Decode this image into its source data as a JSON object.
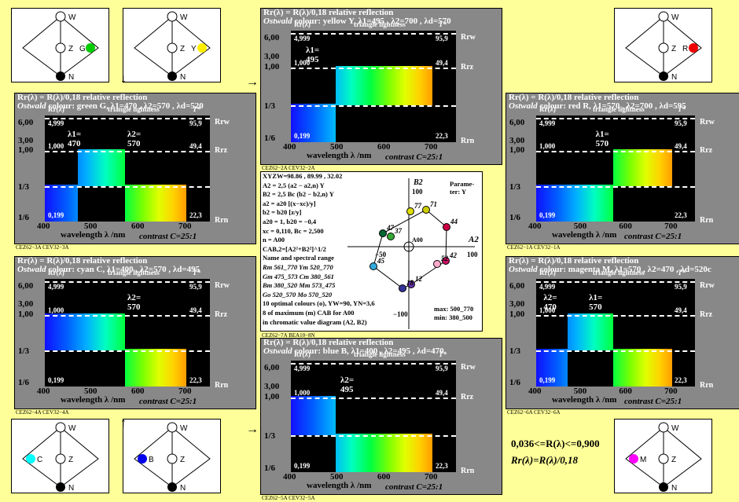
{
  "page": {
    "note_line1": "0,036<=R(λ)<=0,900",
    "note_line2": "Rr(λ)=R(λ)/0,18"
  },
  "triangles": [
    {
      "id": "tri-green",
      "labels": {
        "top": "W",
        "mid": "Z",
        "right": "G",
        "bottom": "N"
      },
      "color": "#00cc00"
    },
    {
      "id": "tri-yellow",
      "labels": {
        "top": "W",
        "mid": "Z",
        "right": "Y",
        "bottom": "N"
      },
      "color": "#ffee00"
    },
    {
      "id": "tri-red",
      "labels": {
        "top": "W",
        "mid": "Z",
        "right": "R",
        "bottom": "N"
      },
      "color": "#ee0000"
    },
    {
      "id": "tri-cyan",
      "labels": {
        "top": "W",
        "mid": "Z",
        "left": "C",
        "bottom": "N"
      },
      "color": "#00ffff"
    },
    {
      "id": "tri-blue",
      "labels": {
        "top": "W",
        "mid": "Z",
        "left": "B",
        "bottom": "N"
      },
      "color": "#0000ee"
    },
    {
      "id": "tri-magenta",
      "labels": {
        "top": "W",
        "mid": "Z",
        "left": "M",
        "bottom": "N"
      },
      "color": "#ff00ff"
    }
  ],
  "arrows": {
    "down": "↓",
    "up": "↑",
    "right": "→"
  },
  "panels": [
    {
      "id": "yellow",
      "title1": "Rr(λ) = R(λ)/0,18 relative reflection",
      "title2_italic": "Ostwald",
      "title2": " colour: yellow Y, λ1=495 , λ2=700 , λd=570",
      "rlabel": "Rr(λ)",
      "tlabel": "triangle lightness",
      "tstar": "T*",
      "lam1": "λ1=",
      "lam1v": "495",
      "lam2": "",
      "lam2v": "",
      "v_top": "4,999",
      "v_tri": "95,9",
      "v_mid": "1,000",
      "v_tri2": "49,4",
      "v_bot": "0,199",
      "v_tri3": "22,3",
      "xlabel": "wavelength λ /nm",
      "contrast": "contrast C=25:1",
      "foot": "CEZ62−2A  CEV32−2A"
    },
    {
      "id": "green",
      "title1": "Rr(λ) = R(λ)/0,18 relative reflection",
      "title2_italic": "Ostwald",
      "title2": " colour: green G, λ1=470 , λ2=570 , λd=520",
      "rlabel": "Rr(λ)",
      "tlabel": "triangle lightness",
      "tstar": "T*",
      "lam1": "λ1=",
      "lam1v": "470",
      "lam2": "λ2=",
      "lam2v": "570",
      "v_top": "4,999",
      "v_tri": "95,9",
      "v_mid": "1,000",
      "v_tri2": "49,4",
      "v_bot": "0,199",
      "v_tri3": "22,3",
      "xlabel": "wavelength λ /nm",
      "contrast": "contrast C=25:1",
      "foot": "CEZ62−3A  CEV32−3A"
    },
    {
      "id": "red",
      "title1": "Rr(λ) = R(λ)/0,18 relative reflection",
      "title2_italic": "Ostwald",
      "title2": " colour: red R, λ1=570 , λ2=700 , λd=595",
      "rlabel": "Rr(λ)",
      "tlabel": "triangle lightness",
      "tstar": "T*",
      "lam1": "λ1=",
      "lam1v": "570",
      "lam2": "",
      "lam2v": "",
      "v_top": "4,999",
      "v_tri": "95,9",
      "v_mid": "1,000",
      "v_tri2": "49,4",
      "v_bot": "0,199",
      "v_tri3": "22,3",
      "xlabel": "wavelength λ /nm",
      "contrast": "contrast C=25:1",
      "foot": "CEZ62−1A  CEV32−1A"
    },
    {
      "id": "cyan",
      "title1": "Rr(λ) = R(λ)/0,18 relative reflection",
      "title2_italic": "Ostwald",
      "title2": " colour: cyan C, λ1=400 , λ2=570 , λd=495",
      "rlabel": "Rr(λ)",
      "tlabel": "triangle lightness",
      "tstar": "T*",
      "lam1": "λ2=",
      "lam1v": "570",
      "lam2": "",
      "lam2v": "",
      "v_top": "4,999",
      "v_tri": "95,9",
      "v_mid": "1,000",
      "v_tri2": "49,4",
      "v_bot": "0,199",
      "v_tri3": "22,3",
      "xlabel": "wavelength λ /nm",
      "contrast": "contrast C=25:1",
      "foot": "CEZ62−4A  CEV32−4A"
    },
    {
      "id": "blue",
      "title1": "Rr(λ) = R(λ)/0,18 relative reflection",
      "title2_italic": "Ostwald",
      "title2": " colour: blue B, λ1=400 , λ2=495 , λd=470",
      "rlabel": "Rr(λ)",
      "tlabel": "triangle lightness",
      "tstar": "T*",
      "lam1": "λ2=",
      "lam1v": "495",
      "lam2": "",
      "lam2v": "",
      "v_top": "4,999",
      "v_tri": "95,9",
      "v_mid": "1,000",
      "v_tri2": "49,4",
      "v_bot": "0,199",
      "v_tri3": "22,3",
      "xlabel": "wavelength λ /nm",
      "contrast": "contrast C=25:1",
      "foot": "CEZ62−5A  CEV32−5A"
    },
    {
      "id": "magenta",
      "title1": "Rr(λ) = R(λ)/0,18 relative reflection",
      "title2_italic": "Ostwald",
      "title2": " colour: magenta M, λ1=570 , λ2=470 , λd=520c",
      "rlabel": "Rr(λ)",
      "tlabel": "triangle lightness",
      "tstar": "T*",
      "lam1": "λ2=",
      "lam1v": "470",
      "lam2": "λ1=",
      "lam2v": "570",
      "v_top": "4,999",
      "v_tri": "95,9",
      "v_mid": "1,000",
      "v_tri2": "49,4",
      "v_bot": "0,199",
      "v_tri3": "22,3",
      "xlabel": "wavelength λ /nm",
      "contrast": "contrast C=25:1",
      "foot": "CEZ62−6A  CEV32−6A"
    }
  ],
  "axis": {
    "y": [
      "6,00",
      "3,00",
      "1,00",
      "1/3",
      "1/6"
    ],
    "x": [
      "400",
      "500",
      "600",
      "700"
    ],
    "r": [
      "Rrw",
      "Rrz",
      "Rrn"
    ]
  },
  "center": {
    "lines": [
      "XYZW=98.86 , 89.99 , 32.02",
      "A2 = 2,5 (a2 − a2,n) Y",
      "B2 = 2,5 Bc (b2 − b2,n) Y",
      "a2 = a20 [(x−xc)/y]",
      "b2 = b20 [z/y]",
      "a20 = 1, b20 = −0,4",
      "xc = 0,110, Bc = 2,500",
      "n = A00",
      "CAB,2=[A2²+B2²]^1/2",
      "Name and spectral range",
      "Rm 561_770   Ym 520_770",
      "Gm 475_573   Cm 380_561",
      "Bm 380_520   Mm 573_475",
      "Go 520_570   Mo 570_520",
      "10 optimal colours (o), YW=90, YN=3,6",
      "8 of maximum (m) CAB for A00",
      "in chromatic value diagram (A2, B2)"
    ],
    "param": "Parame-ter: Y",
    "b2": "B2",
    "a2": "A2",
    "a00": "A00",
    "ticks": {
      "t100": "100",
      "tm50": "−50",
      "t100x": "100",
      "tm100": "−100"
    },
    "maxmin": [
      "max: 500_770",
      "min: 380_500"
    ],
    "points": [
      "71",
      "77",
      "44",
      "42",
      "52",
      "45",
      "47",
      "37",
      "12",
      "18"
    ],
    "foot": "CEZ62−7A  BEA10−8N"
  },
  "chart_data": {
    "type": "line",
    "title": "Rr(λ) = R(λ)/0,18 relative reflection",
    "xlabel": "wavelength λ /nm",
    "ylabel": "Rr(λ)",
    "x": [
      400,
      500,
      600,
      700
    ],
    "series": [
      {
        "name": "yellow Y",
        "lambda1": 495,
        "lambda2": 700,
        "lambda_d": 570
      },
      {
        "name": "green G",
        "lambda1": 470,
        "lambda2": 570,
        "lambda_d": 520
      },
      {
        "name": "red R",
        "lambda1": 570,
        "lambda2": 700,
        "lambda_d": 595
      },
      {
        "name": "cyan C",
        "lambda1": 400,
        "lambda2": 570,
        "lambda_d": 495
      },
      {
        "name": "blue B",
        "lambda1": 400,
        "lambda2": 495,
        "lambda_d": 470
      },
      {
        "name": "magenta M",
        "lambda1": 570,
        "lambda2": 470,
        "lambda_d": "520c"
      }
    ]
  }
}
